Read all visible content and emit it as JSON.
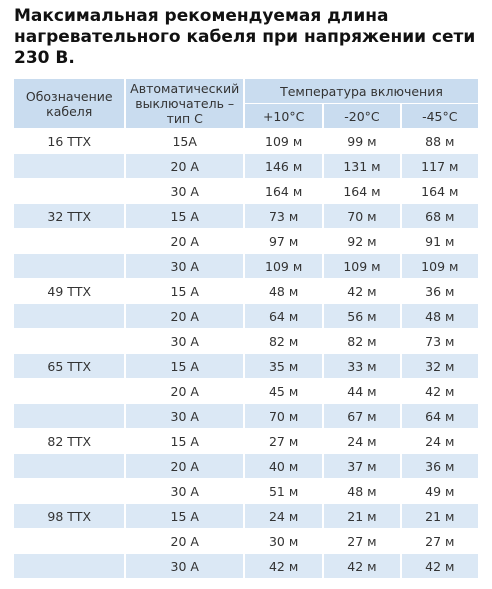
{
  "title": [
    "Максимальная рекомендуемая длина",
    "нагревательного кабеля при напряжении сети",
    "230 В."
  ],
  "table": {
    "header": {
      "cable": "Обозначение кабеля",
      "breaker": "Автоматический выключатель – тип С",
      "temperature": "Температура включения",
      "temps": [
        "+10°C",
        "-20°C",
        "-45°C"
      ]
    },
    "groups": [
      {
        "cable": "16 ТТХ",
        "rows": [
          [
            "15А",
            "109 м",
            "99 м",
            "88 м"
          ],
          [
            "20 А",
            "146 м",
            "131 м",
            "117 м"
          ],
          [
            "30 А",
            "164 м",
            "164 м",
            "164 м"
          ]
        ]
      },
      {
        "cable": "32 ТТХ",
        "rows": [
          [
            "15 А",
            "73 м",
            "70 м",
            "68 м"
          ],
          [
            "20 А",
            "97 м",
            "92 м",
            "91 м"
          ],
          [
            "30 А",
            "109 м",
            "109 м",
            "109 м"
          ]
        ]
      },
      {
        "cable": "49 ТТХ",
        "rows": [
          [
            "15 А",
            "48 м",
            "42 м",
            "36 м"
          ],
          [
            "20 А",
            "64 м",
            "56 м",
            "48 м"
          ],
          [
            "30 А",
            "82 м",
            "82 м",
            "73 м"
          ]
        ]
      },
      {
        "cable": "65 ТТХ",
        "rows": [
          [
            "15 А",
            "35 м",
            "33 м",
            "32 м"
          ],
          [
            "20 А",
            "45 м",
            "44 м",
            "42 м"
          ],
          [
            "30 А",
            "70 м",
            "67 м",
            "64 м"
          ]
        ]
      },
      {
        "cable": "82 ТТХ",
        "rows": [
          [
            "15 А",
            "27 м",
            "24 м",
            "24 м"
          ],
          [
            "20 А",
            "40 м",
            "37 м",
            "36 м"
          ],
          [
            "30 А",
            "51 м",
            "48 м",
            "49 м"
          ]
        ]
      },
      {
        "cable": "98 ТТХ",
        "rows": [
          [
            "15 А",
            "24 м",
            "21 м",
            "21 м"
          ],
          [
            "20 А",
            "30 м",
            "27 м",
            "27 м"
          ],
          [
            "30 А",
            "42 м",
            "42 м",
            "42 м"
          ]
        ]
      }
    ]
  }
}
